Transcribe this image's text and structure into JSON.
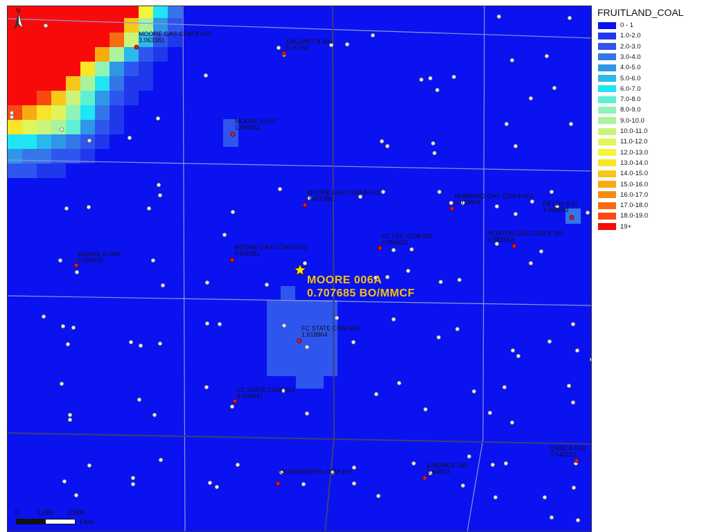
{
  "legend": {
    "title": "FRUITLAND_COAL",
    "items": [
      {
        "label": "0 - 1",
        "color": "#0a12f0"
      },
      {
        "label": "1.0-2.0",
        "color": "#2038ec"
      },
      {
        "label": "2.0-3.0",
        "color": "#2e56ee"
      },
      {
        "label": "3.0-4.0",
        "color": "#3476ea"
      },
      {
        "label": "4.0-5.0",
        "color": "#2f96e8"
      },
      {
        "label": "5.0-6.0",
        "color": "#2ab8ee"
      },
      {
        "label": "6.0-7.0",
        "color": "#1ee6f4"
      },
      {
        "label": "7.0-8.0",
        "color": "#5ef0d2"
      },
      {
        "label": "8.0-9.0",
        "color": "#8ef4b8"
      },
      {
        "label": "9.0-10.0",
        "color": "#a8f49c"
      },
      {
        "label": "10.0-11.0",
        "color": "#cbf47a"
      },
      {
        "label": "11.0-12.0",
        "color": "#e2f45a"
      },
      {
        "label": "12.0-13.0",
        "color": "#f4f43a"
      },
      {
        "label": "13.0-14.0",
        "color": "#f8e428"
      },
      {
        "label": "14.0-15.0",
        "color": "#f8c818"
      },
      {
        "label": "15.0-16.0",
        "color": "#f8aa10"
      },
      {
        "label": "16.0-17.0",
        "color": "#f88c10"
      },
      {
        "label": "17.0-18.0",
        "color": "#f86c10"
      },
      {
        "label": "18.0-19.0",
        "color": "#f84a10"
      },
      {
        "label": "19+",
        "color": "#f80a0a"
      }
    ]
  },
  "target_well": {
    "name": "MOORE 006A",
    "value_text": "0.707685 BO/MMCF",
    "marker": "yellow-star"
  },
  "wells": [
    {
      "name": "MOORE GAS COM E 001",
      "value": "3.063381"
    },
    {
      "name": "DALSANT A 003",
      "value": "0.00762"
    },
    {
      "name": "MOORE D 007",
      "value": "1.065611"
    },
    {
      "name": "MOORE GAS COM B 001",
      "value": "0.457383"
    },
    {
      "name": "HUBBARD GAS COM A 001",
      "value": "0.010824"
    },
    {
      "name": "FIELDS A 02",
      "value": "1.068553"
    },
    {
      "name": "FC FEE COM 002",
      "value": "0.056013"
    },
    {
      "name": "HORTON GAS COM B 003",
      "value": "0.082553"
    },
    {
      "name": "MOORE D 008",
      "value": "0.598325"
    },
    {
      "name": "MOORE GAS COM D 001",
      "value": "0.500361"
    },
    {
      "name": "FC STATE COM 018",
      "value": "1.618864"
    },
    {
      "name": "FC STATE COM 014",
      "value": "0.000847"
    },
    {
      "name": "CASE B 019",
      "value": "0.642113"
    },
    {
      "name": "QUSENBERRY COM 100",
      "value": ""
    },
    {
      "name": "GRENIER 100",
      "value": "0.64913"
    }
  ],
  "north_arrow": {
    "label": "N"
  },
  "scale_bar": {
    "ticks": [
      "0",
      "1,000",
      "2,000"
    ],
    "unit": "Feet"
  }
}
